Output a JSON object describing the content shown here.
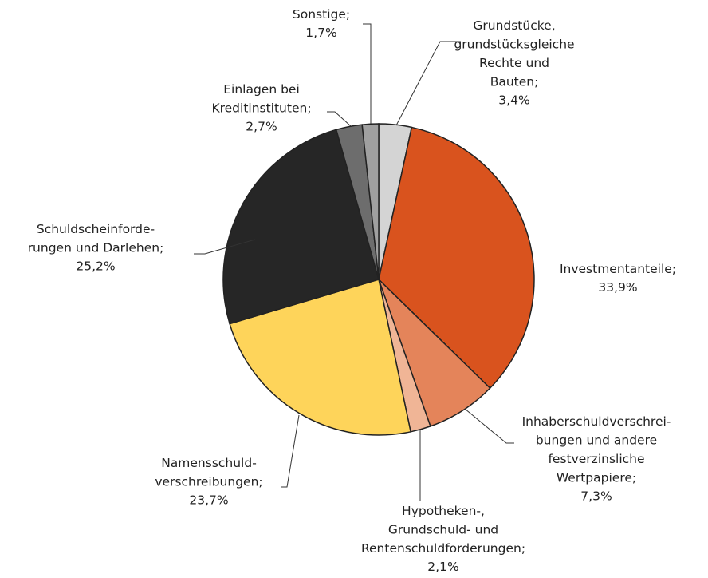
{
  "chart_data": {
    "type": "pie",
    "categories": [
      "Grundstücke,\ngrundstücksgleiche\nRechte und\nBauten;",
      "Investmentanteile;",
      "Inhaberschuldverschrei-\nbungen und andere\nfestverzinsliche\nWertpapiere;",
      "Hypotheken-,\nGrundschuld- und\nRentenschuldforderungen;",
      "Namensschuld-\nverschreibungen;",
      "Schuldscheinforde-\nrungen und Darlehen;",
      "Einlagen bei\nKreditinstituten;",
      "Sonstige;"
    ],
    "values": [
      3.4,
      33.9,
      7.3,
      2.1,
      23.7,
      25.2,
      2.7,
      1.7
    ],
    "value_labels": [
      "3,4%",
      "33,9%",
      "7,3%",
      "2,1%",
      "23,7%",
      "25,2%",
      "2,7%",
      "1,7%"
    ],
    "colors": [
      "#d4d4d4",
      "#d9531e",
      "#e4845a",
      "#f0b596",
      "#fed45a",
      "#262626",
      "#6d6d6d",
      "#a0a0a0"
    ]
  }
}
